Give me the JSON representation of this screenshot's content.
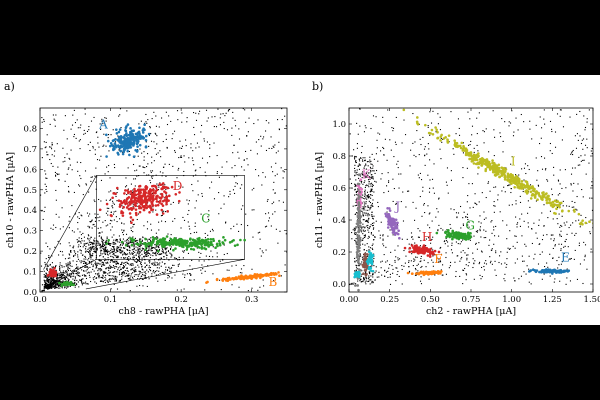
{
  "chart_data": [
    {
      "type": "scatter",
      "panel_label": "a)",
      "xlabel": "ch8 - rawPHA [μA]",
      "ylabel": "ch10 - rawPHA [μA]",
      "xlim": [
        0,
        0.35
      ],
      "ylim": [
        0,
        0.9
      ],
      "xticks": [
        0.0,
        0.1,
        0.2,
        0.3
      ],
      "xtick_labels": [
        "0.0",
        "0.1",
        "0.2",
        "0.3"
      ],
      "yticks": [
        0.0,
        0.1,
        0.2,
        0.3,
        0.4,
        0.5,
        0.6,
        0.7,
        0.8
      ],
      "ytick_labels": [
        "0.0",
        "0.1",
        "0.2",
        "0.3",
        "0.4",
        "0.5",
        "0.6",
        "0.7",
        "0.8"
      ],
      "grid": false,
      "zoom_box": {
        "x": [
          0.005,
          0.065
        ],
        "y": [
          0.015,
          0.11
        ]
      },
      "zoom_inset": {
        "x": [
          0.08,
          0.29
        ],
        "y": [
          0.16,
          0.57
        ]
      },
      "clusters": [
        {
          "label": "A",
          "color": "#1f77b4",
          "x": 0.125,
          "y": 0.74,
          "sx": 0.012,
          "sy": 0.03,
          "rot": 25,
          "n": 220,
          "label_x": 0.09,
          "label_y": 0.8
        },
        {
          "label": "D",
          "color": "#d62728",
          "x": 0.145,
          "y": 0.455,
          "sx": 0.018,
          "sy": 0.035,
          "rot": 10,
          "n": 260,
          "label_x": 0.195,
          "label_y": 0.5
        },
        {
          "label": "C",
          "color": "#2ca02c",
          "x": 0.2,
          "y": 0.24,
          "sx": 0.03,
          "sy": 0.012,
          "rot": 0,
          "n": 260,
          "label_x": 0.235,
          "label_y": 0.34
        },
        {
          "label": "B",
          "color": "#ff7f0e",
          "x": 0.3,
          "y": 0.075,
          "sx": 0.02,
          "sy": 0.004,
          "rot": 6,
          "n": 140,
          "label_x": 0.33,
          "label_y": 0.03
        },
        {
          "label": "",
          "color": "#d62728",
          "x": 0.018,
          "y": 0.095,
          "sx": 0.003,
          "sy": 0.008,
          "rot": 0,
          "n": 50
        },
        {
          "label": "",
          "color": "#2ca02c",
          "x": 0.038,
          "y": 0.04,
          "sx": 0.004,
          "sy": 0.004,
          "rot": 0,
          "n": 40
        }
      ]
    },
    {
      "type": "scatter",
      "panel_label": "b)",
      "xlabel": "ch2 - rawPHA [μA]",
      "ylabel": "ch11 - rawPHA [μA]",
      "xlim": [
        0,
        1.5
      ],
      "ylim": [
        -0.05,
        1.1
      ],
      "xticks": [
        0.0,
        0.25,
        0.5,
        0.75,
        1.0,
        1.25,
        1.5
      ],
      "xtick_labels": [
        "0.00",
        "0.25",
        "0.50",
        "0.75",
        "1.00",
        "1.25",
        "1.50"
      ],
      "yticks": [
        0.0,
        0.2,
        0.4,
        0.6,
        0.8,
        1.0
      ],
      "ytick_labels": [
        "0.0",
        "0.2",
        "0.4",
        "0.6",
        "0.8",
        "1.0"
      ],
      "grid": false,
      "clusters": [
        {
          "label": "I",
          "color": "#bcbd22",
          "x": 0.95,
          "y": 0.69,
          "sx": 0.26,
          "sy": 0.015,
          "rot": -31,
          "n": 420,
          "label_x": 1.01,
          "label_y": 0.74
        },
        {
          "label": "K",
          "color": "#e377c2",
          "x": 0.065,
          "y": 0.54,
          "sx": 0.006,
          "sy": 0.045,
          "rot": 0,
          "n": 60,
          "label_x": 0.105,
          "label_y": 0.66
        },
        {
          "label": "L",
          "color": "#7f7f7f",
          "x": 0.06,
          "y": 0.3,
          "sx": 0.006,
          "sy": 0.14,
          "rot": 0,
          "n": 90,
          "label_x": 0.105,
          "label_y": 0.46
        },
        {
          "label": "J",
          "color": "#9467bd",
          "x": 0.27,
          "y": 0.375,
          "sx": 0.012,
          "sy": 0.035,
          "rot": 20,
          "n": 80,
          "label_x": 0.3,
          "label_y": 0.46
        },
        {
          "label": "H",
          "color": "#d62728",
          "x": 0.45,
          "y": 0.21,
          "sx": 0.035,
          "sy": 0.012,
          "rot": -12,
          "n": 110,
          "label_x": 0.48,
          "label_y": 0.27
        },
        {
          "label": "G",
          "color": "#2ca02c",
          "x": 0.68,
          "y": 0.3,
          "sx": 0.045,
          "sy": 0.012,
          "rot": -8,
          "n": 110,
          "label_x": 0.745,
          "label_y": 0.34
        },
        {
          "label": "F",
          "color": "#ff7f0e",
          "x": 0.5,
          "y": 0.07,
          "sx": 0.04,
          "sy": 0.004,
          "rot": 2,
          "n": 90,
          "label_x": 0.55,
          "label_y": 0.13
        },
        {
          "label": "E",
          "color": "#1f77b4",
          "x": 1.24,
          "y": 0.08,
          "sx": 0.055,
          "sy": 0.005,
          "rot": 0,
          "n": 110,
          "label_x": 1.33,
          "label_y": 0.14
        },
        {
          "label": "",
          "color": "#8c564b",
          "x": 0.1,
          "y": 0.13,
          "sx": 0.008,
          "sy": 0.04,
          "rot": 0,
          "n": 40
        },
        {
          "label": "",
          "color": "#17becf",
          "x": 0.05,
          "y": 0.06,
          "sx": 0.008,
          "sy": 0.008,
          "rot": 0,
          "n": 40
        },
        {
          "label": "",
          "color": "#17becf",
          "x": 0.13,
          "y": 0.14,
          "sx": 0.01,
          "sy": 0.03,
          "rot": 0,
          "n": 30
        }
      ]
    }
  ]
}
